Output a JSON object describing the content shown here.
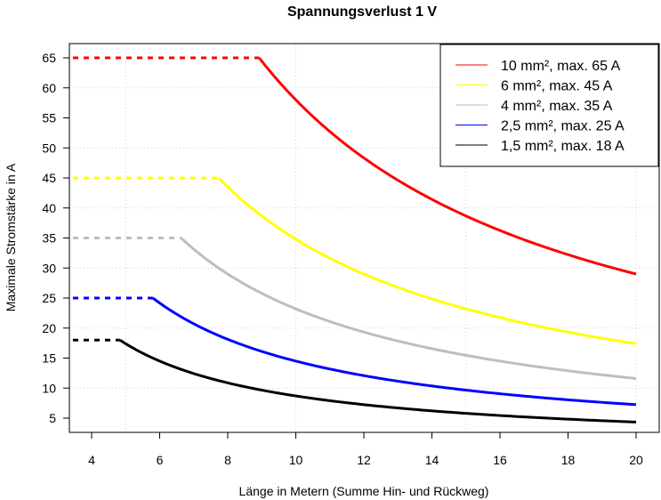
{
  "chart_data": {
    "type": "line",
    "title": "Spannungsverlust 1 V",
    "xlabel": "Länge in Metern (Summe Hin- und Rückweg)",
    "ylabel": "Maximale Stromstärke in A",
    "xlim": [
      3.35,
      20.7
    ],
    "ylim": [
      2.5,
      67.5
    ],
    "xticks": [
      4,
      6,
      8,
      10,
      12,
      14,
      16,
      18,
      20
    ],
    "xtick_labels": [
      "4",
      "6",
      "8",
      "10",
      "12",
      "14",
      "16",
      "18",
      "20"
    ],
    "yticks": [
      5,
      10,
      15,
      20,
      25,
      30,
      35,
      40,
      45,
      50,
      55,
      60,
      65
    ],
    "ytick_labels": [
      "5",
      "10",
      "15",
      "20",
      "25",
      "30",
      "35",
      "40",
      "45",
      "50",
      "55",
      "60",
      "65"
    ],
    "grid": true,
    "grid_x": [
      5,
      10,
      15,
      20
    ],
    "grid_y": [
      10,
      20,
      30,
      40,
      50,
      60
    ],
    "legend_position": "top-right",
    "series": [
      {
        "name": "10 mm², max. 65 A",
        "color": "#ff0000",
        "max_current": 65,
        "k": 580,
        "dash_start": 3.45,
        "x_end": 20
      },
      {
        "name": "6 mm², max. 45 A",
        "color": "#ffff00",
        "max_current": 45,
        "k": 348,
        "dash_start": 3.45,
        "x_end": 20
      },
      {
        "name": "4 mm², max. 35 A",
        "color": "#bebebe",
        "max_current": 35,
        "k": 232,
        "dash_start": 3.45,
        "x_end": 20
      },
      {
        "name": "2,5 mm², max. 25 A",
        "color": "#0000ff",
        "max_current": 25,
        "k": 145,
        "dash_start": 3.45,
        "x_end": 20
      },
      {
        "name": "1,5 mm², max. 18 A",
        "color": "#000000",
        "max_current": 18,
        "k": 87,
        "dash_start": 3.45,
        "x_end": 20
      }
    ]
  }
}
